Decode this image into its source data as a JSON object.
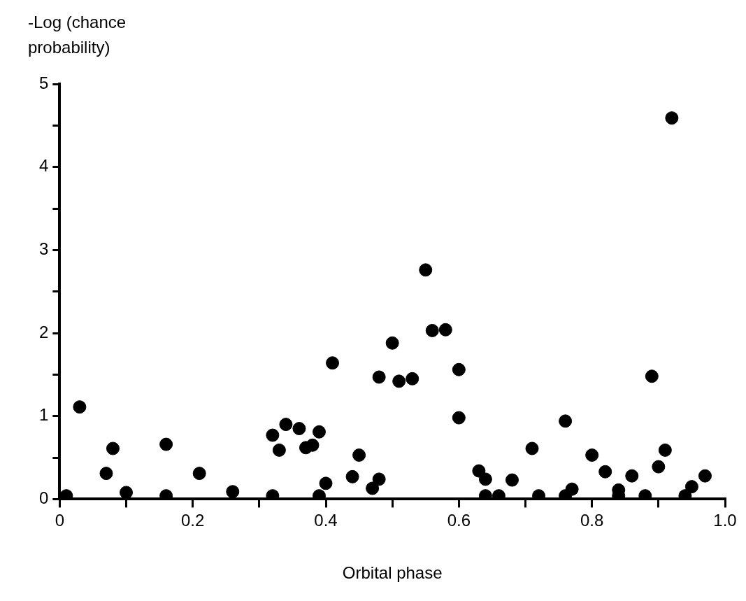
{
  "chart_data": {
    "type": "scatter",
    "xlabel": "Orbital phase",
    "ylabel": "-Log (chance probability)",
    "marker": "circle",
    "grid": false,
    "legend": false,
    "xlim": [
      0,
      1.0
    ],
    "ylim": [
      0,
      5
    ],
    "xticks": [
      {
        "value": 0,
        "label": "0"
      },
      {
        "value": 0.1,
        "label": null
      },
      {
        "value": 0.2,
        "label": "0.2"
      },
      {
        "value": 0.3,
        "label": null
      },
      {
        "value": 0.4,
        "label": "0.4"
      },
      {
        "value": 0.5,
        "label": null
      },
      {
        "value": 0.6,
        "label": "0.6"
      },
      {
        "value": 0.7,
        "label": null
      },
      {
        "value": 0.8,
        "label": "0.8"
      },
      {
        "value": 0.9,
        "label": null
      },
      {
        "value": 1.0,
        "label": "1.0"
      }
    ],
    "yticks": [
      0,
      {
        "value": 0.5,
        "label": null
      },
      1,
      {
        "value": 1.5,
        "label": null
      },
      2,
      {
        "value": 2.5,
        "label": null
      },
      3,
      {
        "value": 3.5,
        "label": null
      },
      4,
      {
        "value": 4.5,
        "label": null
      },
      5
    ],
    "series": [
      {
        "color": "#000000",
        "x": [
          0.01,
          0.03,
          0.07,
          0.08,
          0.1,
          0.16,
          0.16,
          0.21,
          0.26,
          0.32,
          0.32,
          0.33,
          0.34,
          0.36,
          0.37,
          0.38,
          0.39,
          0.39,
          0.4,
          0.41,
          0.44,
          0.45,
          0.47,
          0.48,
          0.48,
          0.5,
          0.51,
          0.53,
          0.55,
          0.56,
          0.58,
          0.6,
          0.6,
          0.63,
          0.64,
          0.64,
          0.66,
          0.68,
          0.71,
          0.72,
          0.76,
          0.76,
          0.77,
          0.8,
          0.82,
          0.84,
          0.84,
          0.86,
          0.88,
          0.89,
          0.9,
          0.91,
          0.92,
          0.94,
          0.95,
          0.97
        ],
        "values": [
          0.04,
          1.11,
          0.31,
          0.61,
          0.08,
          0.66,
          0.04,
          0.31,
          0.09,
          0.77,
          0.04,
          0.59,
          0.9,
          0.85,
          0.62,
          0.65,
          0.81,
          0.04,
          0.19,
          1.64,
          0.27,
          0.53,
          0.13,
          0.24,
          1.47,
          1.88,
          1.42,
          1.45,
          2.76,
          2.03,
          2.04,
          1.56,
          0.98,
          0.34,
          0.24,
          0.04,
          0.04,
          0.23,
          0.61,
          0.04,
          0.94,
          0.04,
          0.12,
          0.53,
          0.33,
          0.11,
          0.04,
          0.28,
          0.04,
          1.48,
          0.39,
          0.59,
          4.59,
          0.04,
          0.15,
          0.28
        ]
      }
    ]
  }
}
